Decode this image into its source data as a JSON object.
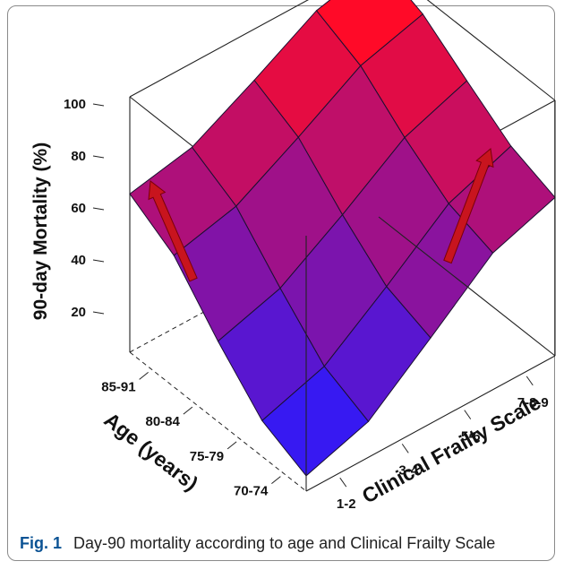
{
  "chart_data": {
    "type": "surface",
    "zlabel": "90-day Mortality (%)",
    "xlabel": "Age (years)",
    "ylabel": "Clinical Frailty Scale",
    "z_ticks": [
      "100",
      "80",
      "60",
      "40",
      "20"
    ],
    "age_groups": [
      "70-74",
      "75-79",
      "80-84",
      "85-91"
    ],
    "frailty_groups": [
      "1-2",
      "3-4",
      "5-6",
      "7-8-9"
    ],
    "zlim": [
      0,
      100
    ],
    "values": [
      [
        6,
        22,
        45,
        62
      ],
      [
        22,
        38,
        55,
        75
      ],
      [
        41,
        55,
        70,
        86
      ],
      [
        62,
        72,
        88,
        100
      ]
    ],
    "colors": {
      "low": "#2a1aff",
      "high": "#ff0a28",
      "arrow": "#c8141e"
    }
  },
  "caption": {
    "label": "Fig. 1",
    "text": "Day-90 mortality according to age and Clinical Frailty Scale"
  }
}
